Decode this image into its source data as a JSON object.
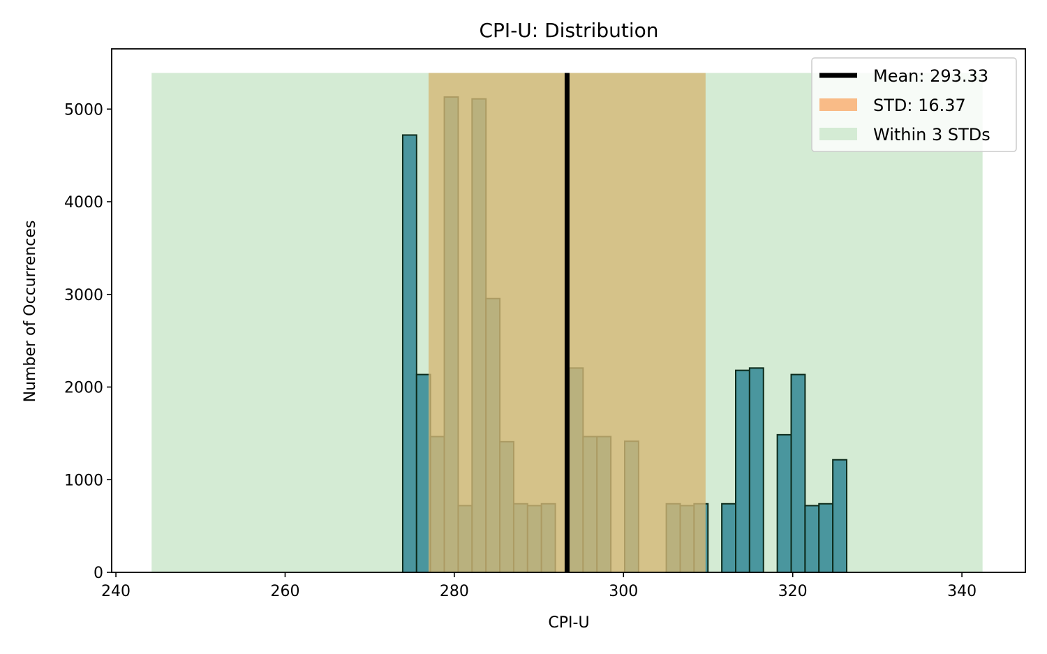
{
  "chart_data": {
    "type": "bar",
    "title": "CPI-U: Distribution",
    "xlabel": "CPI-U",
    "ylabel": "Number of Occurrences",
    "xlim": [
      239.5,
      347.5
    ],
    "ylim": [
      0,
      5650
    ],
    "xticks": [
      240,
      260,
      280,
      300,
      320,
      340
    ],
    "yticks": [
      0,
      1000,
      2000,
      3000,
      4000,
      5000
    ],
    "bin_width": 1.64,
    "bins": [
      {
        "x0": 273.9,
        "count": 4720
      },
      {
        "x0": 275.54,
        "count": 2135
      },
      {
        "x0": 277.18,
        "count": 1465
      },
      {
        "x0": 278.82,
        "count": 5130
      },
      {
        "x0": 280.46,
        "count": 720
      },
      {
        "x0": 282.1,
        "count": 5110
      },
      {
        "x0": 283.74,
        "count": 2955
      },
      {
        "x0": 285.38,
        "count": 1410
      },
      {
        "x0": 287.02,
        "count": 740
      },
      {
        "x0": 288.66,
        "count": 720
      },
      {
        "x0": 290.3,
        "count": 740
      },
      {
        "x0": 293.58,
        "count": 2205
      },
      {
        "x0": 295.22,
        "count": 1465
      },
      {
        "x0": 296.86,
        "count": 1465
      },
      {
        "x0": 300.14,
        "count": 1415
      },
      {
        "x0": 305.06,
        "count": 740
      },
      {
        "x0": 306.7,
        "count": 720
      },
      {
        "x0": 308.34,
        "count": 740
      },
      {
        "x0": 311.62,
        "count": 740
      },
      {
        "x0": 313.26,
        "count": 2180
      },
      {
        "x0": 314.9,
        "count": 2205
      },
      {
        "x0": 318.18,
        "count": 1485
      },
      {
        "x0": 319.82,
        "count": 2135
      },
      {
        "x0": 321.46,
        "count": 720
      },
      {
        "x0": 323.1,
        "count": 740
      },
      {
        "x0": 324.74,
        "count": 1215
      }
    ],
    "mean": 293.33,
    "std": 16.37,
    "band_top": 5390,
    "bar_color": "#4a969e",
    "bar_edge_color": "#0d2b1b",
    "std_band_color": "#d5b876",
    "three_std_band_color": "#d4ebd4",
    "mean_line_color": "#000000",
    "legend": {
      "position": "upper right",
      "entries": [
        {
          "label": "Mean: 293.33",
          "kind": "line",
          "color": "#000000"
        },
        {
          "label": "STD: 16.37",
          "kind": "patch",
          "color": "#f9bb87"
        },
        {
          "label": "Within 3 STDs",
          "kind": "patch",
          "color": "#d4ebd4"
        }
      ]
    }
  }
}
